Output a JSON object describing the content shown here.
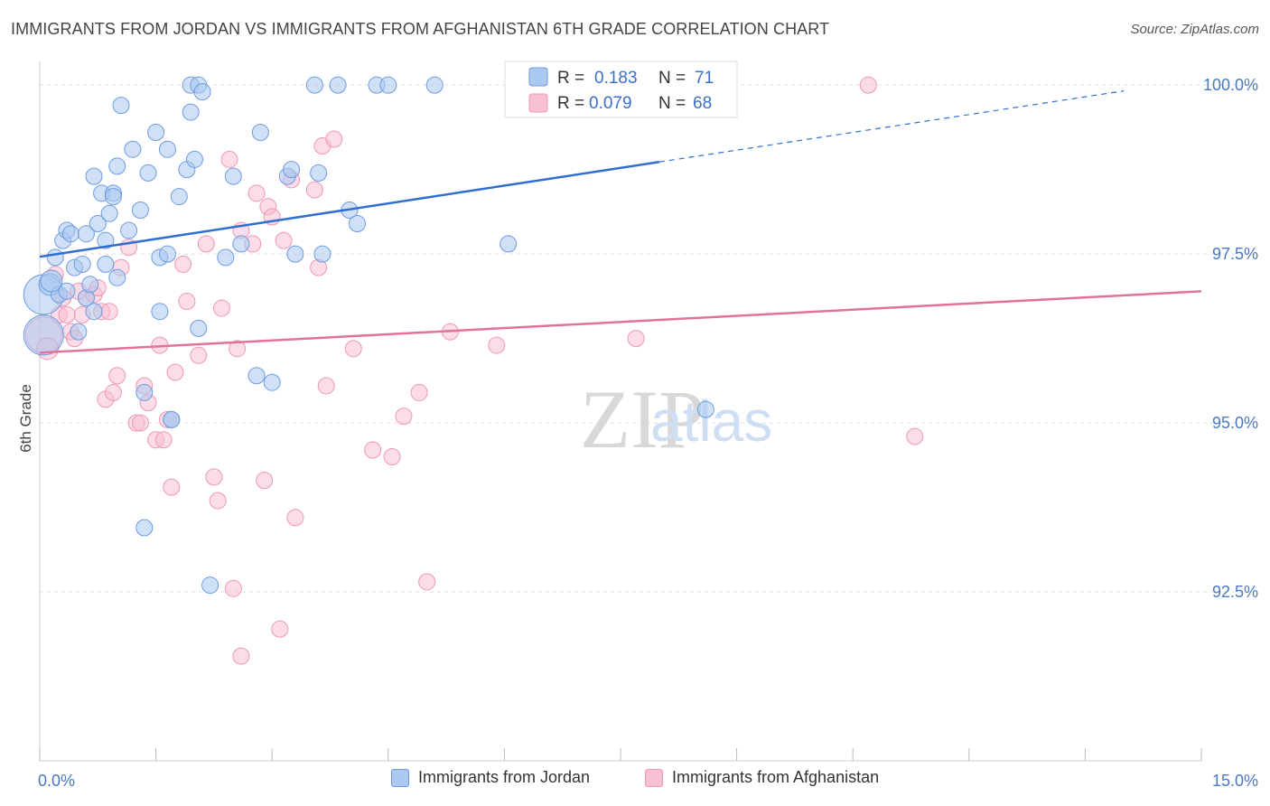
{
  "header": {
    "title": "IMMIGRANTS FROM JORDAN VS IMMIGRANTS FROM AFGHANISTAN 6TH GRADE CORRELATION CHART",
    "source": "Source: ZipAtlas.com"
  },
  "watermark": {
    "zip": "ZIP",
    "atlas": "atlas"
  },
  "colors": {
    "jordan_fill": "#aac8f0",
    "jordan_stroke": "#6d9be0",
    "jordan_line": "#2f6fd0",
    "afghan_fill": "#f7c0d3",
    "afghan_stroke": "#ee97b7",
    "afghan_line": "#e2729c",
    "grid": "#dddddd",
    "tick_label": "#4a78c2"
  },
  "legend": {
    "rows": [
      {
        "r_label": "R =",
        "r_value": "0.183",
        "n_label": "N =",
        "n_value": "71"
      },
      {
        "r_label": "R =",
        "r_value": "0.079",
        "n_label": "N =",
        "n_value": "68"
      }
    ]
  },
  "chart_data": {
    "type": "scatter",
    "title": "IMMIGRANTS FROM JORDAN VS IMMIGRANTS FROM AFGHANISTAN 6TH GRADE CORRELATION CHART",
    "xlabel": "",
    "ylabel": "6th Grade",
    "xlim": [
      0,
      15
    ],
    "ylim": [
      90.0,
      100.35
    ],
    "x_tick_labels": [
      {
        "value": 0,
        "label": "0.0%"
      },
      {
        "value": 15,
        "label": "15.0%"
      }
    ],
    "y_ticks": [
      {
        "value": 100.0,
        "label": "100.0%"
      },
      {
        "value": 97.5,
        "label": "97.5%"
      },
      {
        "value": 95.0,
        "label": "95.0%"
      },
      {
        "value": 92.5,
        "label": "92.5%"
      }
    ],
    "grid": "horizontal dashed",
    "legend_position": "top-center",
    "series": [
      {
        "name": "Immigrants from Jordan",
        "r": 0.183,
        "n": 71,
        "trend": {
          "x0": 0.0,
          "y0": 97.46,
          "x_solid_end": 8.0,
          "x_dash_end": 14.0,
          "slope": 0.1753
        },
        "points": [
          [
            0.05,
            96.9,
            22
          ],
          [
            0.05,
            96.3,
            22
          ],
          [
            0.13,
            97.05,
            12
          ],
          [
            0.2,
            97.45,
            9
          ],
          [
            0.25,
            96.9,
            9
          ],
          [
            0.3,
            97.7,
            9
          ],
          [
            0.35,
            96.95,
            9
          ],
          [
            0.35,
            97.85,
            9
          ],
          [
            0.4,
            97.8,
            9
          ],
          [
            0.45,
            97.3,
            9
          ],
          [
            0.5,
            96.35,
            9
          ],
          [
            0.55,
            97.35,
            9
          ],
          [
            0.6,
            97.8,
            9
          ],
          [
            0.6,
            96.85,
            9
          ],
          [
            0.65,
            97.05,
            9
          ],
          [
            0.7,
            96.65,
            9
          ],
          [
            0.7,
            98.65,
            9
          ],
          [
            0.75,
            97.95,
            9
          ],
          [
            0.8,
            98.4,
            9
          ],
          [
            0.85,
            97.7,
            9
          ],
          [
            0.85,
            97.35,
            9
          ],
          [
            0.9,
            98.1,
            9
          ],
          [
            0.95,
            98.4,
            9
          ],
          [
            0.95,
            98.35,
            9
          ],
          [
            1.0,
            97.15,
            9
          ],
          [
            1.0,
            98.8,
            9
          ],
          [
            1.05,
            99.7,
            9
          ],
          [
            1.15,
            97.85,
            9
          ],
          [
            1.2,
            99.05,
            9
          ],
          [
            1.3,
            98.15,
            9
          ],
          [
            1.35,
            95.45,
            9
          ],
          [
            1.35,
            93.45,
            9
          ],
          [
            1.4,
            98.7,
            9
          ],
          [
            1.5,
            99.3,
            9
          ],
          [
            1.55,
            96.65,
            9
          ],
          [
            1.55,
            97.45,
            9
          ],
          [
            1.65,
            99.05,
            9
          ],
          [
            1.65,
            97.5,
            9
          ],
          [
            1.7,
            95.05,
            9
          ],
          [
            1.7,
            95.05,
            9
          ],
          [
            1.8,
            98.35,
            9
          ],
          [
            1.9,
            98.75,
            9
          ],
          [
            1.95,
            99.6,
            9
          ],
          [
            1.95,
            100.0,
            9
          ],
          [
            2.0,
            98.9,
            9
          ],
          [
            2.05,
            100.0,
            9
          ],
          [
            2.05,
            96.4,
            9
          ],
          [
            2.1,
            99.9,
            9
          ],
          [
            2.2,
            92.6,
            9
          ],
          [
            2.4,
            97.45,
            9
          ],
          [
            2.5,
            98.65,
            9
          ],
          [
            2.6,
            97.65,
            9
          ],
          [
            2.8,
            95.7,
            9
          ],
          [
            2.85,
            99.3,
            9
          ],
          [
            3.0,
            95.6,
            9
          ],
          [
            3.2,
            98.65,
            9
          ],
          [
            3.25,
            98.75,
            9
          ],
          [
            3.3,
            97.5,
            9
          ],
          [
            3.55,
            100.0,
            9
          ],
          [
            3.6,
            98.7,
            9
          ],
          [
            3.65,
            97.5,
            9
          ],
          [
            3.85,
            100.0,
            9
          ],
          [
            4.0,
            98.15,
            9
          ],
          [
            4.1,
            97.95,
            9
          ],
          [
            4.35,
            100.0,
            9
          ],
          [
            4.5,
            100.0,
            9
          ],
          [
            5.1,
            100.0,
            9
          ],
          [
            6.05,
            97.65,
            9
          ],
          [
            8.6,
            95.2,
            9
          ],
          [
            8.25,
            100.0,
            9
          ],
          [
            0.15,
            97.1,
            12
          ]
        ]
      },
      {
        "name": "Immigrants from Afghanistan",
        "r": 0.079,
        "n": 68,
        "trend": {
          "x0": 0.0,
          "y0": 96.04,
          "x_solid_end": 15.0,
          "slope": 0.0606
        },
        "points": [
          [
            0.05,
            96.3,
            20
          ],
          [
            0.1,
            96.1,
            12
          ],
          [
            0.2,
            97.2,
            9
          ],
          [
            0.25,
            96.6,
            9
          ],
          [
            0.3,
            96.85,
            9
          ],
          [
            0.4,
            96.35,
            9
          ],
          [
            0.45,
            96.25,
            9
          ],
          [
            0.55,
            96.6,
            9
          ],
          [
            0.6,
            96.85,
            9
          ],
          [
            0.7,
            96.9,
            9
          ],
          [
            0.75,
            97.0,
            9
          ],
          [
            0.8,
            96.65,
            9
          ],
          [
            0.85,
            95.35,
            9
          ],
          [
            0.9,
            96.65,
            9
          ],
          [
            0.95,
            95.45,
            9
          ],
          [
            1.0,
            95.7,
            9
          ],
          [
            1.05,
            97.3,
            9
          ],
          [
            1.15,
            97.6,
            9
          ],
          [
            1.25,
            95.0,
            9
          ],
          [
            1.3,
            95.0,
            9
          ],
          [
            1.35,
            95.55,
            9
          ],
          [
            1.4,
            95.3,
            9
          ],
          [
            1.5,
            94.75,
            9
          ],
          [
            1.55,
            96.15,
            9
          ],
          [
            1.6,
            94.75,
            9
          ],
          [
            1.65,
            95.05,
            9
          ],
          [
            1.7,
            94.05,
            9
          ],
          [
            1.75,
            95.75,
            9
          ],
          [
            1.85,
            97.35,
            9
          ],
          [
            1.9,
            96.8,
            9
          ],
          [
            2.05,
            96.0,
            9
          ],
          [
            2.15,
            97.65,
            9
          ],
          [
            2.25,
            94.2,
            9
          ],
          [
            2.3,
            93.85,
            9
          ],
          [
            2.35,
            96.7,
            9
          ],
          [
            2.45,
            98.9,
            9
          ],
          [
            2.5,
            92.55,
            9
          ],
          [
            2.55,
            96.1,
            9
          ],
          [
            2.6,
            97.85,
            9
          ],
          [
            2.6,
            91.55,
            9
          ],
          [
            2.75,
            97.65,
            9
          ],
          [
            2.8,
            98.4,
            9
          ],
          [
            2.9,
            94.15,
            9
          ],
          [
            2.95,
            98.2,
            9
          ],
          [
            3.0,
            98.05,
            9
          ],
          [
            3.1,
            91.95,
            9
          ],
          [
            3.15,
            97.7,
            9
          ],
          [
            3.25,
            98.6,
            9
          ],
          [
            3.3,
            93.6,
            9
          ],
          [
            3.55,
            98.45,
            9
          ],
          [
            3.6,
            97.3,
            9
          ],
          [
            3.65,
            99.1,
            9
          ],
          [
            3.7,
            95.55,
            9
          ],
          [
            3.8,
            99.2,
            9
          ],
          [
            4.05,
            96.1,
            9
          ],
          [
            4.3,
            94.6,
            9
          ],
          [
            4.55,
            94.5,
            9
          ],
          [
            4.7,
            95.1,
            9
          ],
          [
            4.9,
            95.45,
            9
          ],
          [
            5.0,
            92.65,
            9
          ],
          [
            5.3,
            96.35,
            9
          ],
          [
            5.9,
            96.15,
            9
          ],
          [
            6.8,
            100.0,
            9
          ],
          [
            7.7,
            96.25,
            9
          ],
          [
            10.7,
            100.0,
            9
          ],
          [
            11.3,
            94.8,
            9
          ],
          [
            0.35,
            96.6,
            9
          ],
          [
            0.5,
            96.95,
            9
          ]
        ]
      }
    ]
  }
}
